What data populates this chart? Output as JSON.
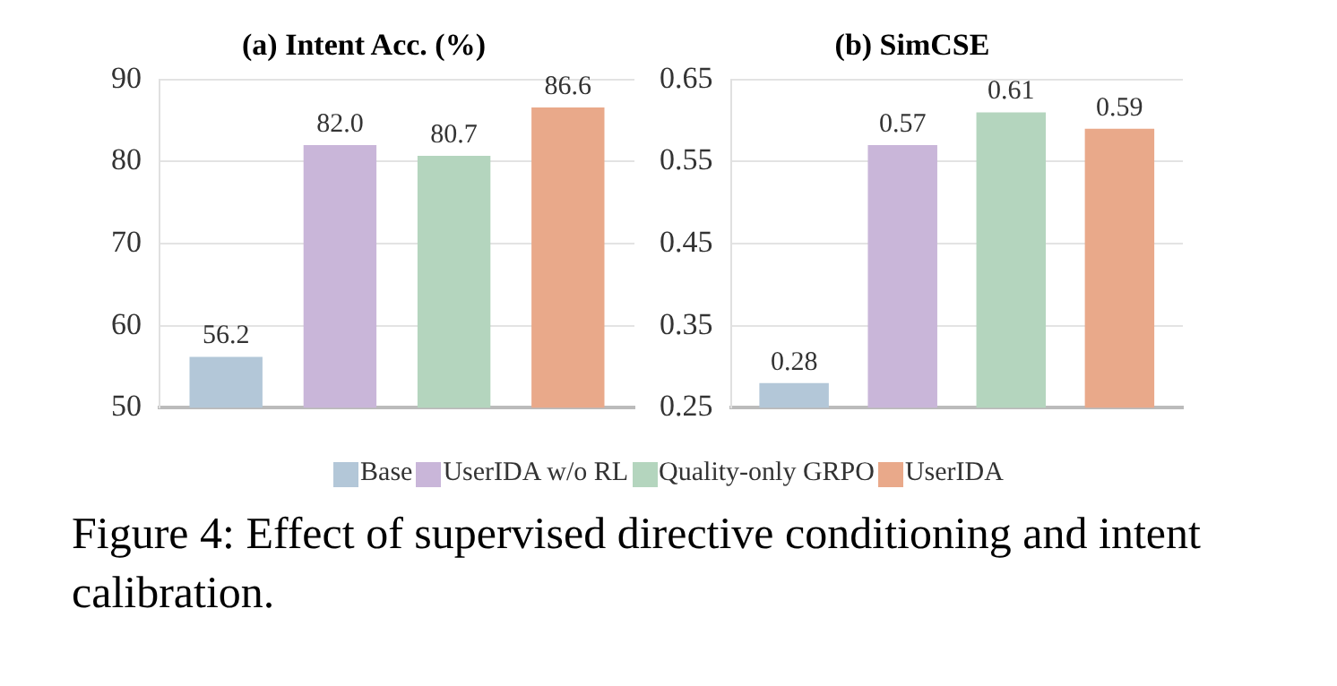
{
  "chart_data": [
    {
      "type": "bar",
      "title": "(a) Intent Acc. (%)",
      "categories": [
        null
      ],
      "series": [
        {
          "name": "Base",
          "color": "#b3c7d8",
          "values": [
            56.2
          ],
          "value_labels": [
            "56.2"
          ]
        },
        {
          "name": "UserIDA w/o RL",
          "color": "#c9b6d9",
          "values": [
            82.0
          ],
          "value_labels": [
            "82.0"
          ]
        },
        {
          "name": "Quality-only GRPO",
          "color": "#b4d5be",
          "values": [
            80.7
          ],
          "value_labels": [
            "80.7"
          ]
        },
        {
          "name": "UserIDA",
          "color": "#e9a98a",
          "values": [
            86.6
          ],
          "value_labels": [
            "86.6"
          ]
        }
      ],
      "ylim": [
        50,
        90
      ],
      "yticks": [
        50,
        60,
        70,
        80,
        90
      ],
      "grid": "y",
      "legend": "bottom",
      "annotations": [
        "Figure 4: Effect of supervised directive conditioning and intent calibration."
      ]
    },
    {
      "type": "bar",
      "title": "(b) SimCSE",
      "categories": [
        null
      ],
      "series": [
        {
          "name": "Base",
          "color": "#b3c7d8",
          "values": [
            0.28
          ],
          "value_labels": [
            "0.28"
          ]
        },
        {
          "name": "UserIDA w/o RL",
          "color": "#c9b6d9",
          "values": [
            0.57
          ],
          "value_labels": [
            "0.57"
          ]
        },
        {
          "name": "Quality-only GRPO",
          "color": "#b4d5be",
          "values": [
            0.61
          ],
          "value_labels": [
            "0.61"
          ]
        },
        {
          "name": "UserIDA",
          "color": "#e9a98a",
          "values": [
            0.59
          ],
          "value_labels": [
            "0.59"
          ]
        }
      ],
      "ylim": [
        0.25,
        0.65
      ],
      "yticks": [
        0.25,
        0.35,
        0.45,
        0.55,
        0.65
      ],
      "grid": "y",
      "legend": "bottom"
    }
  ]
}
